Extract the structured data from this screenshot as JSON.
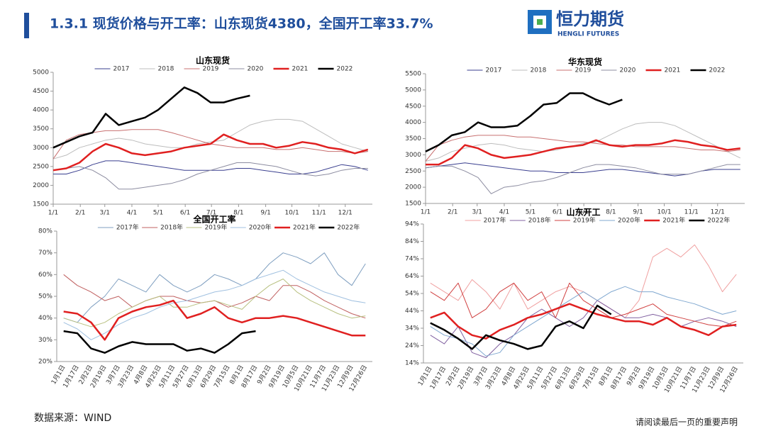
{
  "header": {
    "title": "1.3.1 现货价格与开工率：山东现货4380，全国开工率33.7%",
    "logo_cn": "恒力期货",
    "logo_en": "HENGLI FUTURES"
  },
  "footer": {
    "source": "数据来源：WIND",
    "notice": "请阅读最后一页的重要声明"
  },
  "chart_data": [
    {
      "type": "line",
      "title": "山东现货",
      "x": [
        0,
        15,
        30,
        45,
        60,
        75,
        90,
        105,
        120,
        135,
        150,
        165,
        180,
        195,
        210,
        225,
        240,
        255,
        270,
        285,
        300,
        315,
        330,
        345,
        360
      ],
      "xlim": [
        0,
        365
      ],
      "xticks": [
        {
          "value": 0,
          "label": "1/1"
        },
        {
          "value": 31,
          "label": "2/1"
        },
        {
          "value": 59,
          "label": "3/1"
        },
        {
          "value": 90,
          "label": "4/1"
        },
        {
          "value": 120,
          "label": "5/1"
        },
        {
          "value": 151,
          "label": "6/1"
        },
        {
          "value": 181,
          "label": "7/1"
        },
        {
          "value": 212,
          "label": "8/1"
        },
        {
          "value": 243,
          "label": "9/1"
        },
        {
          "value": 273,
          "label": "10/1"
        },
        {
          "value": 304,
          "label": "11/1"
        },
        {
          "value": 334,
          "label": "12/1"
        }
      ],
      "ylim": [
        1500,
        5000
      ],
      "yticks": [
        1500,
        2000,
        2500,
        3000,
        3500,
        4000,
        4500,
        5000
      ],
      "series": [
        {
          "name": "2017",
          "color": "#3a3f8f",
          "linewidth": 1,
          "values": [
            2300,
            2300,
            2400,
            2550,
            2650,
            2650,
            2600,
            2550,
            2500,
            2450,
            2400,
            2400,
            2400,
            2400,
            2450,
            2450,
            2400,
            2350,
            2300,
            2300,
            2350,
            2450,
            2550,
            2500,
            2400
          ]
        },
        {
          "name": "2018",
          "color": "#bdbdbd",
          "linewidth": 1,
          "values": [
            2700,
            2800,
            3000,
            3100,
            3200,
            3250,
            3200,
            3100,
            3050,
            3000,
            3000,
            3100,
            3150,
            3200,
            3400,
            3600,
            3700,
            3750,
            3750,
            3700,
            3500,
            3300,
            3100,
            3000,
            2900
          ]
        },
        {
          "name": "2019",
          "color": "#c87070",
          "linewidth": 1,
          "values": [
            2700,
            3200,
            3350,
            3400,
            3450,
            3450,
            3480,
            3480,
            3480,
            3400,
            3300,
            3200,
            3100,
            3050,
            3000,
            3000,
            3000,
            2950,
            2950,
            3000,
            2950,
            2900,
            2900,
            2850,
            2900
          ]
        },
        {
          "name": "2020",
          "color": "#8c8ca0",
          "linewidth": 1,
          "values": [
            2400,
            2450,
            2500,
            2400,
            2200,
            1900,
            1900,
            1950,
            2000,
            2050,
            2150,
            2300,
            2400,
            2500,
            2600,
            2600,
            2550,
            2500,
            2400,
            2300,
            2250,
            2300,
            2400,
            2450,
            2450
          ]
        },
        {
          "name": "2021",
          "color": "#e02020",
          "linewidth": 2.5,
          "values": [
            2400,
            2450,
            2600,
            2900,
            3100,
            3000,
            2850,
            2800,
            2850,
            2900,
            3000,
            3050,
            3100,
            3350,
            3200,
            3100,
            3100,
            3000,
            3050,
            3150,
            3100,
            3000,
            2950,
            2850,
            2950
          ]
        },
        {
          "name": "2022",
          "color": "#000000",
          "linewidth": 2.5,
          "values": [
            3000,
            3150,
            3300,
            3400,
            3900,
            3600,
            3700,
            3800,
            4000,
            4300,
            4600,
            4450,
            4200,
            4200,
            4300,
            4380,
            null,
            null,
            null,
            null,
            null,
            null,
            null,
            null,
            null
          ]
        }
      ]
    },
    {
      "type": "line",
      "title": "华东现货",
      "x": [
        0,
        15,
        30,
        45,
        60,
        75,
        90,
        105,
        120,
        135,
        150,
        165,
        180,
        195,
        210,
        225,
        240,
        255,
        270,
        285,
        300,
        315,
        330,
        345,
        360
      ],
      "xlim": [
        0,
        365
      ],
      "xticks": [
        {
          "value": 0,
          "label": "1/1"
        },
        {
          "value": 31,
          "label": "2/1"
        },
        {
          "value": 59,
          "label": "3/1"
        },
        {
          "value": 90,
          "label": "4/1"
        },
        {
          "value": 120,
          "label": "5/1"
        },
        {
          "value": 151,
          "label": "6/1"
        },
        {
          "value": 181,
          "label": "7/1"
        },
        {
          "value": 212,
          "label": "8/1"
        },
        {
          "value": 243,
          "label": "9/1"
        },
        {
          "value": 273,
          "label": "10/1"
        },
        {
          "value": 304,
          "label": "11/1"
        },
        {
          "value": 334,
          "label": "12/1"
        }
      ],
      "ylim": [
        1500,
        5500
      ],
      "yticks": [
        1500,
        2000,
        2500,
        3000,
        3500,
        4000,
        4500,
        5000,
        5500
      ],
      "series": [
        {
          "name": "2017",
          "color": "#3a3f8f",
          "linewidth": 1,
          "values": [
            2600,
            2650,
            2700,
            2750,
            2700,
            2650,
            2600,
            2550,
            2500,
            2500,
            2450,
            2450,
            2450,
            2500,
            2550,
            2550,
            2500,
            2450,
            2400,
            2350,
            2400,
            2500,
            2550,
            2550,
            2550
          ]
        },
        {
          "name": "2018",
          "color": "#bdbdbd",
          "linewidth": 1,
          "values": [
            2800,
            2900,
            3100,
            3200,
            3300,
            3350,
            3300,
            3200,
            3150,
            3100,
            3150,
            3250,
            3350,
            3400,
            3600,
            3800,
            3950,
            4000,
            4000,
            3900,
            3700,
            3500,
            3300,
            3100,
            2900
          ]
        },
        {
          "name": "2019",
          "color": "#c87070",
          "linewidth": 1,
          "values": [
            2800,
            3300,
            3450,
            3550,
            3600,
            3600,
            3600,
            3550,
            3550,
            3500,
            3450,
            3400,
            3400,
            3350,
            3300,
            3300,
            3250,
            3250,
            3250,
            3250,
            3200,
            3150,
            3150,
            3100,
            3150
          ]
        },
        {
          "name": "2020",
          "color": "#8c8ca0",
          "linewidth": 1,
          "values": [
            2600,
            2650,
            2650,
            2500,
            2300,
            1800,
            2000,
            2050,
            2150,
            2200,
            2300,
            2450,
            2600,
            2700,
            2700,
            2650,
            2600,
            2500,
            2400,
            2400,
            2400,
            2500,
            2600,
            2700,
            2700
          ]
        },
        {
          "name": "2021",
          "color": "#e02020",
          "linewidth": 2.5,
          "values": [
            2700,
            2700,
            2900,
            3300,
            3200,
            3000,
            2900,
            2950,
            3000,
            3100,
            3200,
            3250,
            3300,
            3450,
            3300,
            3250,
            3300,
            3300,
            3350,
            3450,
            3400,
            3300,
            3250,
            3150,
            3200
          ]
        },
        {
          "name": "2022",
          "color": "#000000",
          "linewidth": 2.5,
          "values": [
            3100,
            3300,
            3600,
            3700,
            4000,
            3850,
            3850,
            3900,
            4200,
            4550,
            4600,
            4900,
            4900,
            4700,
            4550,
            4700,
            null,
            null,
            null,
            null,
            null,
            null,
            null,
            null,
            null
          ]
        }
      ]
    },
    {
      "type": "line",
      "title": "全国开工率",
      "categories": [
        "1月1日",
        "1月17日",
        "2月2日",
        "2月19日",
        "3月7日",
        "3月23日",
        "4月8日",
        "4月25日",
        "5月11日",
        "5月27日",
        "6月13日",
        "6月29日",
        "7月15日",
        "8月1日",
        "8月17日",
        "9月2日",
        "9月19日",
        "10月5日",
        "10月21日",
        "11月7日",
        "11月23日",
        "12月9日",
        "12月26日"
      ],
      "ylim": [
        20,
        80
      ],
      "yticks": [
        {
          "value": 20,
          "label": "20%"
        },
        {
          "value": 30,
          "label": "30%"
        },
        {
          "value": 40,
          "label": "40%"
        },
        {
          "value": 50,
          "label": "50%"
        },
        {
          "value": 60,
          "label": "60%"
        },
        {
          "value": 70,
          "label": "70%"
        },
        {
          "value": 80,
          "label": "80%"
        }
      ],
      "series": [
        {
          "name": "2017年",
          "color": "#7f9fc0",
          "linewidth": 1,
          "values": [
            40,
            38,
            45,
            50,
            58,
            55,
            52,
            60,
            55,
            52,
            55,
            60,
            58,
            55,
            58,
            65,
            70,
            68,
            65,
            70,
            60,
            55,
            65
          ]
        },
        {
          "name": "2018年",
          "color": "#c06060",
          "linewidth": 1,
          "values": [
            60,
            55,
            52,
            48,
            50,
            45,
            48,
            50,
            50,
            48,
            47,
            48,
            45,
            47,
            50,
            48,
            55,
            55,
            52,
            48,
            45,
            42,
            40
          ]
        },
        {
          "name": "2019年",
          "color": "#b8c080",
          "linewidth": 1,
          "values": [
            40,
            38,
            36,
            38,
            42,
            45,
            48,
            50,
            45,
            45,
            47,
            48,
            46,
            44,
            50,
            55,
            58,
            52,
            48,
            45,
            42,
            40,
            41
          ]
        },
        {
          "name": "2020年",
          "color": "#a0c0e0",
          "linewidth": 1,
          "values": [
            38,
            35,
            30,
            33,
            37,
            40,
            42,
            45,
            47,
            48,
            50,
            52,
            53,
            55,
            58,
            60,
            62,
            58,
            55,
            52,
            50,
            48,
            47
          ]
        },
        {
          "name": "2021年",
          "color": "#e02020",
          "linewidth": 2.5,
          "values": [
            43,
            42,
            38,
            30,
            40,
            43,
            45,
            46,
            48,
            40,
            42,
            45,
            40,
            38,
            40,
            40,
            41,
            40,
            38,
            36,
            34,
            32,
            32
          ]
        },
        {
          "name": "2022年",
          "color": "#000000",
          "linewidth": 2.5,
          "values": [
            34,
            33,
            26,
            24,
            27,
            29,
            28,
            28,
            28,
            25,
            26,
            24,
            28,
            33,
            34,
            null,
            null,
            null,
            null,
            null,
            null,
            null,
            null
          ]
        }
      ]
    },
    {
      "type": "line",
      "title": "山东开工",
      "categories": [
        "1月1日",
        "1月17日",
        "2月2日",
        "2月19日",
        "3月7日",
        "3月23日",
        "4月8日",
        "4月25日",
        "5月11日",
        "5月27日",
        "6月13日",
        "6月29日",
        "7月15日",
        "8月1日",
        "8月17日",
        "9月2日",
        "9月19日",
        "10月5日",
        "10月21日",
        "11月7日",
        "11月23日",
        "12月9日",
        "12月26日"
      ],
      "ylim": [
        14,
        94
      ],
      "yticks": [
        {
          "value": 14,
          "label": "14%"
        },
        {
          "value": 24,
          "label": "24%"
        },
        {
          "value": 34,
          "label": "34%"
        },
        {
          "value": 44,
          "label": "44%"
        },
        {
          "value": 54,
          "label": "54%"
        },
        {
          "value": 64,
          "label": "64%"
        },
        {
          "value": 74,
          "label": "74%"
        },
        {
          "value": 84,
          "label": "84%"
        },
        {
          "value": 94,
          "label": "94%"
        }
      ],
      "series": [
        {
          "name": "2017年",
          "color": "#f0a0a0",
          "linewidth": 1,
          "values": [
            60,
            55,
            50,
            62,
            55,
            45,
            60,
            45,
            50,
            55,
            58,
            55,
            50,
            45,
            40,
            50,
            75,
            80,
            75,
            82,
            70,
            55,
            65
          ]
        },
        {
          "name": "2018年",
          "color": "#8060a0",
          "linewidth": 1,
          "values": [
            30,
            25,
            35,
            20,
            17,
            25,
            30,
            40,
            45,
            40,
            35,
            40,
            50,
            45,
            40,
            40,
            42,
            40,
            35,
            38,
            40,
            38,
            35
          ]
        },
        {
          "name": "2019年",
          "color": "#d04040",
          "linewidth": 1,
          "values": [
            55,
            50,
            60,
            40,
            45,
            55,
            60,
            50,
            55,
            40,
            60,
            50,
            45,
            40,
            42,
            45,
            48,
            42,
            40,
            38,
            36,
            35,
            38
          ]
        },
        {
          "name": "2020年",
          "color": "#80a8d0",
          "linewidth": 1,
          "values": [
            35,
            30,
            28,
            25,
            18,
            20,
            30,
            35,
            40,
            45,
            50,
            55,
            50,
            55,
            58,
            55,
            55,
            52,
            50,
            48,
            45,
            42,
            44
          ]
        },
        {
          "name": "2021年",
          "color": "#e02020",
          "linewidth": 2.5,
          "values": [
            40,
            43,
            35,
            30,
            28,
            33,
            36,
            40,
            42,
            45,
            48,
            45,
            42,
            40,
            38,
            38,
            36,
            40,
            35,
            33,
            30,
            35,
            36
          ]
        },
        {
          "name": "2022年",
          "color": "#000000",
          "linewidth": 2.5,
          "values": [
            37,
            33,
            28,
            22,
            30,
            27,
            25,
            22,
            24,
            35,
            38,
            34,
            47,
            42,
            null,
            null,
            null,
            null,
            null,
            null,
            null,
            null,
            null
          ]
        }
      ]
    }
  ]
}
